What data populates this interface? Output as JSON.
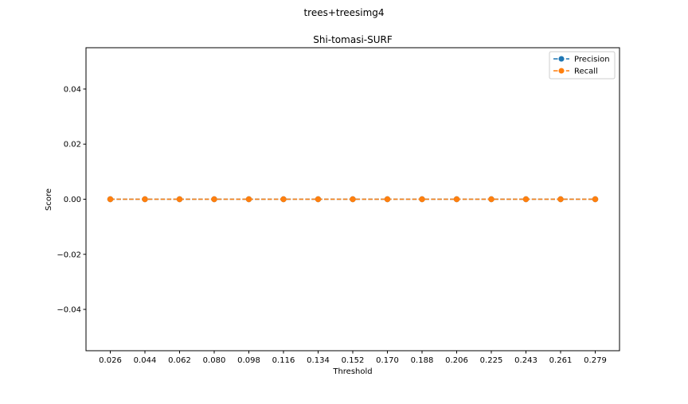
{
  "figure": {
    "suptitle": "trees+treesimg4"
  },
  "chart_data": {
    "type": "line",
    "title": "Shi-tomasi-SURF",
    "xlabel": "Threshold",
    "ylabel": "Score",
    "x": [
      "0.026",
      "0.044",
      "0.062",
      "0.080",
      "0.098",
      "0.116",
      "0.134",
      "0.152",
      "0.170",
      "0.188",
      "0.206",
      "0.225",
      "0.243",
      "0.261",
      "0.279"
    ],
    "series": [
      {
        "name": "Precision",
        "values": [
          0,
          0,
          0,
          0,
          0,
          0,
          0,
          0,
          0,
          0,
          0,
          0,
          0,
          0,
          0
        ],
        "color": "#1f77b4",
        "line_style": "dashed",
        "marker": "circle"
      },
      {
        "name": "Recall",
        "values": [
          0,
          0,
          0,
          0,
          0,
          0,
          0,
          0,
          0,
          0,
          0,
          0,
          0,
          0,
          0
        ],
        "color": "#ff7f0e",
        "line_style": "dashed",
        "marker": "circle"
      }
    ],
    "ylim": [
      -0.055,
      0.055
    ],
    "yticks": [
      -0.04,
      -0.02,
      0.0,
      0.02,
      0.04
    ],
    "ytick_labels": [
      "−0.04",
      "−0.02",
      "0.00",
      "0.02",
      "0.04"
    ],
    "grid": false,
    "legend_position": "top-right"
  }
}
